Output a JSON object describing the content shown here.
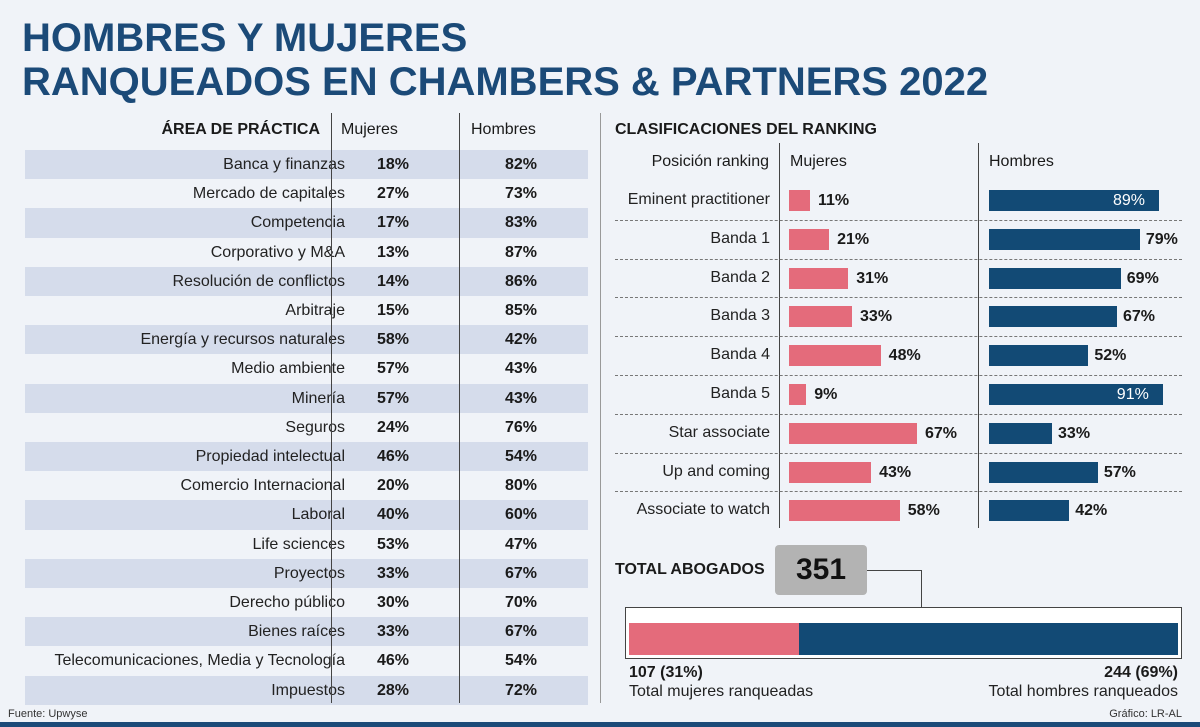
{
  "title": {
    "line1": "HOMBRES Y MUJERES",
    "line2": "RANQUEADOS EN CHAMBERS   & PARTNERS 2022"
  },
  "left_table": {
    "headers": {
      "area": "ÁREA DE PRÁCTICA",
      "mujeres": "Mujeres",
      "hombres": "Hombres"
    },
    "rows": [
      {
        "area": "Banca y finanzas",
        "mujeres": "18%",
        "hombres": "82%"
      },
      {
        "area": "Mercado de capitales",
        "mujeres": "27%",
        "hombres": "73%"
      },
      {
        "area": "Competencia",
        "mujeres": "17%",
        "hombres": "83%"
      },
      {
        "area": "Corporativo y M&A",
        "mujeres": "13%",
        "hombres": "87%"
      },
      {
        "area": "Resolución de conflictos",
        "mujeres": "14%",
        "hombres": "86%"
      },
      {
        "area": "Arbitraje",
        "mujeres": "15%",
        "hombres": "85%"
      },
      {
        "area": "Energía y recursos naturales",
        "mujeres": "58%",
        "hombres": "42%"
      },
      {
        "area": "Medio ambiente",
        "mujeres": "57%",
        "hombres": "43%"
      },
      {
        "area": "Minería",
        "mujeres": "57%",
        "hombres": "43%"
      },
      {
        "area": "Seguros",
        "mujeres": "24%",
        "hombres": "76%"
      },
      {
        "area": "Propiedad intelectual",
        "mujeres": "46%",
        "hombres": "54%"
      },
      {
        "area": "Comercio Internacional",
        "mujeres": "20%",
        "hombres": "80%"
      },
      {
        "area": "Laboral",
        "mujeres": "40%",
        "hombres": "60%"
      },
      {
        "area": "Life sciences",
        "mujeres": "53%",
        "hombres": "47%"
      },
      {
        "area": "Proyectos",
        "mujeres": "33%",
        "hombres": "67%"
      },
      {
        "area": "Derecho público",
        "mujeres": "30%",
        "hombres": "70%"
      },
      {
        "area": "Bienes raíces",
        "mujeres": "33%",
        "hombres": "67%"
      },
      {
        "area": "Telecomunicaciones, Media y Tecnología",
        "mujeres": "46%",
        "hombres": "54%"
      },
      {
        "area": "Impuestos",
        "mujeres": "28%",
        "hombres": "72%"
      }
    ]
  },
  "chart_data": {
    "type": "bar",
    "title": "CLASIFICACIONES DEL RANKING",
    "column_headers": {
      "position": "Posición ranking",
      "mujeres": "Mujeres",
      "hombres": "Hombres"
    },
    "categories": [
      "Eminent practitioner",
      "Banda 1",
      "Banda 2",
      "Banda 3",
      "Banda 4",
      "Banda 5",
      "Star associate",
      "Up and coming",
      "Associate to watch"
    ],
    "series": [
      {
        "name": "Mujeres",
        "values": [
          11,
          21,
          31,
          33,
          48,
          9,
          67,
          43,
          58
        ],
        "color": "#e46b7b"
      },
      {
        "name": "Hombres",
        "values": [
          89,
          79,
          69,
          67,
          52,
          91,
          33,
          57,
          42
        ],
        "color": "#124a75"
      }
    ],
    "unit": "%",
    "ylim": [
      0,
      100
    ]
  },
  "totals": {
    "label": "TOTAL ABOGADOS",
    "total": "351",
    "mujeres_count": "107 (31%)",
    "mujeres_caption": "Total mujeres ranqueadas",
    "hombres_count": "244 (69%)",
    "hombres_caption": "Total hombres ranqueados",
    "mujeres_share": 31
  },
  "footer": {
    "source": "Fuente: Upwyse",
    "credit": "Gráfico: LR-AL"
  },
  "colors": {
    "title": "#1b4a78",
    "mujeres": "#e46b7b",
    "hombres": "#124a75",
    "shade": "#d5dceb"
  }
}
